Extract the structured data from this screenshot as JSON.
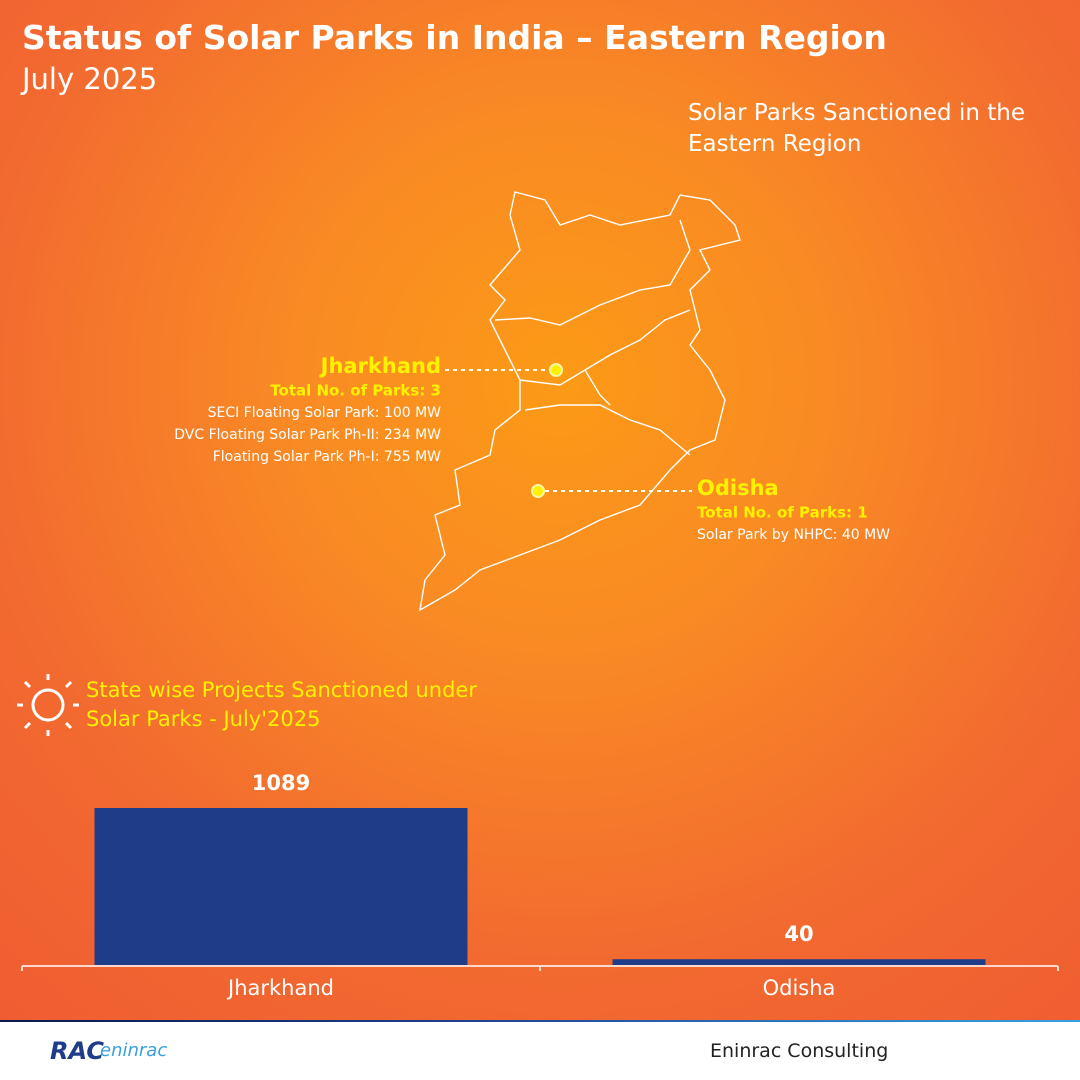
{
  "header": {
    "title": "Status of Solar Parks in India – Eastern Region",
    "subtitle": "July 2025"
  },
  "map": {
    "title": "Solar Parks Sanctioned in the Eastern Region",
    "states": [
      {
        "name": "Jharkhand",
        "parks": "Total No. of Parks: 3",
        "projects": [
          "SECI Floating Solar Park: 100 MW",
          "DVC Floating Solar Park Ph-II: 234 MW",
          "Floating Solar Park Ph-I: 755 MW"
        ]
      },
      {
        "name": "Odisha",
        "parks": "Total No. of Parks: 1",
        "projects": [
          "Solar Park by NHPC: 40 MW"
        ]
      }
    ]
  },
  "chart_data": {
    "type": "bar",
    "title": "State wise Projects Sanctioned under Solar Parks - July'2025",
    "categories": [
      "Jharkhand",
      "Odisha"
    ],
    "values": [
      1089,
      40
    ],
    "color": "#1f3c88",
    "ylim": [
      0,
      1089
    ]
  },
  "footer": {
    "logo_main": "RAC",
    "logo_sub": "eninrac",
    "company": "Eninrac Consulting"
  }
}
